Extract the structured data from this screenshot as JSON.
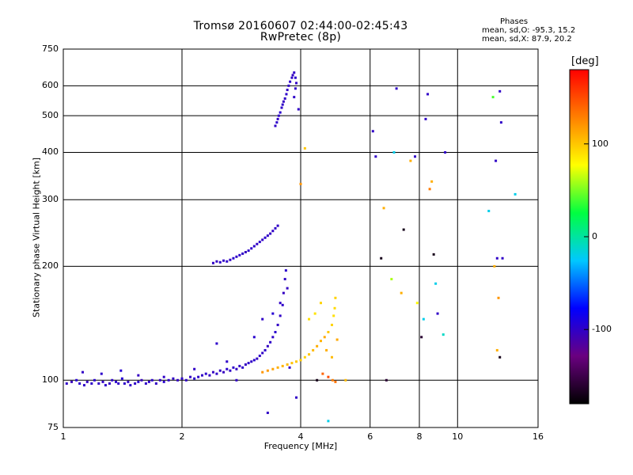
{
  "header": {
    "title_line1": "Tromsø 20160607 02:44:00-02:45:43",
    "title_line2": "RwPretec (8p)"
  },
  "stats": {
    "heading": "Phases",
    "line1": "mean, sd,O: -95.3, 15.2",
    "line2": "mean, sd,X:  87.9, 20.2"
  },
  "colorbar": {
    "label": "[deg]",
    "ticks": [
      {
        "value": 100,
        "text": "100"
      },
      {
        "value": 0,
        "text": "0"
      },
      {
        "value": -100,
        "text": "-100"
      }
    ],
    "range": [
      -180,
      180
    ],
    "colors": [
      "#000000",
      "#6a0080",
      "#0000ff",
      "#00c8ff",
      "#00ff40",
      "#ffff00",
      "#ff8000",
      "#ff0000"
    ]
  },
  "chart_data": {
    "type": "scatter",
    "title": "Tromsø 20160607 02:44:00-02:45:43 RwPretec (8p)",
    "xlabel": "Frequency [MHz]",
    "ylabel": "Stationary phase Virtual Height [km]",
    "xscale": "log2",
    "yscale": "log",
    "xlim": [
      1,
      16
    ],
    "ylim": [
      75,
      750
    ],
    "xticks": [
      1,
      2,
      4,
      6,
      8,
      10,
      16
    ],
    "xtick_labels": [
      "1",
      "2",
      "4",
      "6",
      "8",
      "10",
      "16"
    ],
    "yticks": [
      75,
      100,
      200,
      300,
      400,
      500,
      600,
      750
    ],
    "ytick_labels": [
      "75",
      "100",
      "200",
      "300",
      "400",
      "500",
      "600",
      "750"
    ],
    "grid": true,
    "points": [
      [
        1.02,
        98,
        -100
      ],
      [
        1.05,
        99,
        -105
      ],
      [
        1.08,
        100,
        -95
      ],
      [
        1.1,
        98,
        -98
      ],
      [
        1.13,
        97,
        -100
      ],
      [
        1.15,
        99,
        -102
      ],
      [
        1.18,
        98,
        -99
      ],
      [
        1.2,
        100,
        -96
      ],
      [
        1.23,
        98,
        -100
      ],
      [
        1.26,
        99,
        -101
      ],
      [
        1.28,
        97,
        -98
      ],
      [
        1.31,
        98,
        -103
      ],
      [
        1.33,
        100,
        -100
      ],
      [
        1.36,
        99,
        -97
      ],
      [
        1.38,
        98,
        -100
      ],
      [
        1.41,
        101,
        -95
      ],
      [
        1.43,
        98,
        -99
      ],
      [
        1.46,
        99,
        -101
      ],
      [
        1.48,
        97,
        -100
      ],
      [
        1.52,
        98,
        -100
      ],
      [
        1.55,
        99,
        -96
      ],
      [
        1.58,
        100,
        -104
      ],
      [
        1.62,
        98,
        -100
      ],
      [
        1.65,
        99,
        -99
      ],
      [
        1.68,
        100,
        -98
      ],
      [
        1.72,
        98,
        -101
      ],
      [
        1.76,
        100,
        -100
      ],
      [
        1.8,
        99,
        -97
      ],
      [
        1.85,
        100,
        -99
      ],
      [
        1.9,
        101,
        -100
      ],
      [
        1.95,
        100,
        -102
      ],
      [
        2.0,
        101,
        -98
      ],
      [
        2.05,
        100,
        -100
      ],
      [
        2.1,
        102,
        -101
      ],
      [
        2.15,
        101,
        -97
      ],
      [
        2.2,
        102,
        -99
      ],
      [
        2.25,
        103,
        -100
      ],
      [
        2.3,
        104,
        -98
      ],
      [
        2.35,
        103,
        -101
      ],
      [
        2.4,
        105,
        -102
      ],
      [
        2.45,
        104,
        -99
      ],
      [
        2.5,
        106,
        -100
      ],
      [
        2.55,
        105,
        -103
      ],
      [
        2.6,
        107,
        -97
      ],
      [
        2.65,
        106,
        -100
      ],
      [
        2.7,
        108,
        -98
      ],
      [
        2.75,
        107,
        -101
      ],
      [
        2.8,
        109,
        -100
      ],
      [
        2.85,
        108,
        -99
      ],
      [
        2.9,
        110,
        -102
      ],
      [
        2.95,
        111,
        -98
      ],
      [
        3.0,
        112,
        -100
      ],
      [
        3.05,
        113,
        -97
      ],
      [
        3.1,
        114,
        -101
      ],
      [
        3.15,
        116,
        -99
      ],
      [
        3.2,
        118,
        -100
      ],
      [
        3.25,
        120,
        -98
      ],
      [
        3.3,
        123,
        -102
      ],
      [
        3.35,
        126,
        -99
      ],
      [
        3.4,
        130,
        -100
      ],
      [
        3.45,
        134,
        -97
      ],
      [
        3.5,
        140,
        -101
      ],
      [
        3.55,
        148,
        -100
      ],
      [
        3.6,
        158,
        -99
      ],
      [
        3.62,
        170,
        -102
      ],
      [
        3.65,
        185,
        -100
      ],
      [
        3.67,
        195,
        -98
      ],
      [
        1.12,
        105,
        -100
      ],
      [
        1.25,
        104,
        -98
      ],
      [
        1.4,
        106,
        -95
      ],
      [
        1.55,
        103,
        -102
      ],
      [
        1.8,
        102,
        -100
      ],
      [
        2.15,
        107,
        -100
      ],
      [
        2.45,
        125,
        -98
      ],
      [
        2.6,
        112,
        -99
      ],
      [
        2.75,
        100,
        -100
      ],
      [
        3.05,
        130,
        -97
      ],
      [
        3.2,
        145,
        -100
      ],
      [
        3.4,
        150,
        -95
      ],
      [
        3.55,
        160,
        -100
      ],
      [
        3.7,
        175,
        -102
      ],
      [
        3.75,
        108,
        -100
      ],
      [
        2.4,
        204,
        -100
      ],
      [
        2.45,
        206,
        -102
      ],
      [
        2.5,
        205,
        -98
      ],
      [
        2.55,
        207,
        -100
      ],
      [
        2.6,
        206,
        -99
      ],
      [
        2.65,
        208,
        -101
      ],
      [
        2.7,
        210,
        -97
      ],
      [
        2.75,
        212,
        -100
      ],
      [
        2.8,
        214,
        -98
      ],
      [
        2.85,
        216,
        -100
      ],
      [
        2.9,
        218,
        -103
      ],
      [
        2.95,
        220,
        -99
      ],
      [
        3.0,
        223,
        -100
      ],
      [
        3.05,
        226,
        -98
      ],
      [
        3.1,
        229,
        -101
      ],
      [
        3.15,
        232,
        -99
      ],
      [
        3.2,
        235,
        -100
      ],
      [
        3.25,
        238,
        -97
      ],
      [
        3.3,
        241,
        -100
      ],
      [
        3.35,
        244,
        -102
      ],
      [
        3.4,
        248,
        -100
      ],
      [
        3.45,
        252,
        -99
      ],
      [
        3.5,
        256,
        -101
      ],
      [
        3.45,
        470,
        -100
      ],
      [
        3.48,
        480,
        -98
      ],
      [
        3.5,
        490,
        -101
      ],
      [
        3.52,
        500,
        -100
      ],
      [
        3.55,
        510,
        -97
      ],
      [
        3.58,
        525,
        -99
      ],
      [
        3.6,
        535,
        -100
      ],
      [
        3.62,
        545,
        -102
      ],
      [
        3.65,
        555,
        -100
      ],
      [
        3.68,
        570,
        -98
      ],
      [
        3.7,
        585,
        -101
      ],
      [
        3.73,
        600,
        -100
      ],
      [
        3.76,
        615,
        -99
      ],
      [
        3.8,
        630,
        -100
      ],
      [
        3.82,
        640,
        -102
      ],
      [
        3.85,
        650,
        -100
      ],
      [
        3.88,
        630,
        -98
      ],
      [
        3.9,
        610,
        -101
      ],
      [
        3.88,
        590,
        -100
      ],
      [
        3.85,
        560,
        -99
      ],
      [
        3.95,
        520,
        -100
      ],
      [
        3.2,
        105,
        120
      ],
      [
        3.3,
        106,
        118
      ],
      [
        3.4,
        107,
        115
      ],
      [
        3.5,
        108,
        110
      ],
      [
        3.6,
        109,
        108
      ],
      [
        3.7,
        110,
        105
      ],
      [
        3.8,
        111,
        102
      ],
      [
        3.9,
        112,
        100
      ],
      [
        4.0,
        113,
        98
      ],
      [
        4.1,
        115,
        95
      ],
      [
        4.2,
        117,
        100
      ],
      [
        4.3,
        120,
        105
      ],
      [
        4.4,
        123,
        110
      ],
      [
        4.5,
        127,
        108
      ],
      [
        4.6,
        130,
        112
      ],
      [
        4.7,
        134,
        100
      ],
      [
        4.8,
        140,
        95
      ],
      [
        4.85,
        148,
        90
      ],
      [
        4.88,
        155,
        92
      ],
      [
        4.9,
        165,
        95
      ],
      [
        4.2,
        145,
        90
      ],
      [
        4.35,
        150,
        88
      ],
      [
        4.5,
        160,
        95
      ],
      [
        4.65,
        120,
        110
      ],
      [
        4.8,
        115,
        105
      ],
      [
        4.95,
        128,
        112
      ],
      [
        4.4,
        100,
        -170
      ],
      [
        4.55,
        104,
        140
      ],
      [
        4.7,
        102,
        150
      ],
      [
        4.82,
        100,
        130
      ],
      [
        4.9,
        99,
        135
      ],
      [
        5.2,
        100,
        105
      ],
      [
        4.7,
        78,
        -20
      ],
      [
        4.0,
        330,
        120
      ],
      [
        4.1,
        410,
        100
      ],
      [
        3.9,
        90,
        -100
      ],
      [
        3.3,
        82,
        -100
      ],
      [
        6.1,
        455,
        -100
      ],
      [
        6.2,
        390,
        -100
      ],
      [
        6.4,
        210,
        -170
      ],
      [
        6.5,
        285,
        110
      ],
      [
        6.6,
        100,
        -160
      ],
      [
        6.8,
        185,
        60
      ],
      [
        6.9,
        400,
        -20
      ],
      [
        7.0,
        590,
        -100
      ],
      [
        7.2,
        170,
        110
      ],
      [
        7.3,
        250,
        -170
      ],
      [
        7.6,
        380,
        110
      ],
      [
        7.8,
        390,
        -100
      ],
      [
        7.9,
        160,
        80
      ],
      [
        8.1,
        130,
        -160
      ],
      [
        8.2,
        145,
        -20
      ],
      [
        8.3,
        490,
        -100
      ],
      [
        8.4,
        570,
        -100
      ],
      [
        8.5,
        320,
        130
      ],
      [
        8.6,
        335,
        110
      ],
      [
        8.7,
        215,
        -170
      ],
      [
        8.8,
        180,
        -20
      ],
      [
        8.9,
        150,
        -100
      ],
      [
        9.2,
        132,
        -10
      ],
      [
        9.3,
        400,
        -100
      ],
      [
        12.0,
        280,
        -20
      ],
      [
        12.3,
        560,
        40
      ],
      [
        12.4,
        200,
        110
      ],
      [
        12.5,
        380,
        -100
      ],
      [
        12.6,
        210,
        -100
      ],
      [
        12.8,
        580,
        -100
      ],
      [
        12.9,
        480,
        -100
      ],
      [
        13.0,
        210,
        -100
      ],
      [
        12.7,
        165,
        120
      ],
      [
        12.8,
        115,
        -170
      ],
      [
        12.6,
        120,
        110
      ],
      [
        14.0,
        310,
        -20
      ]
    ]
  }
}
